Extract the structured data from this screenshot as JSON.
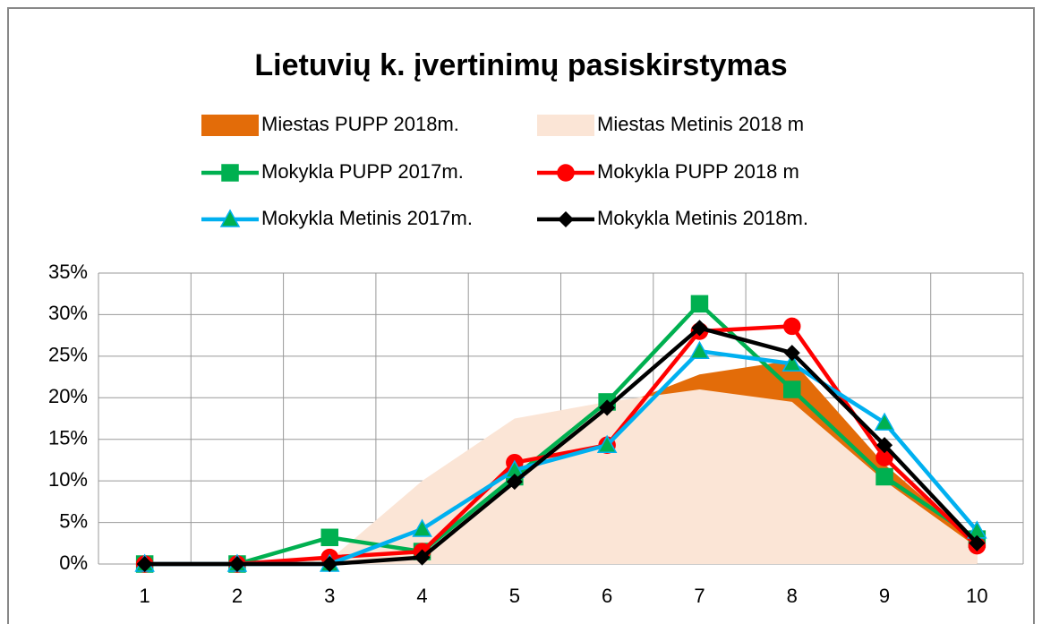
{
  "chart_data": {
    "type": "line",
    "title": "Lietuvių k. įvertinimų pasiskirstymas",
    "categories": [
      "1",
      "2",
      "3",
      "4",
      "5",
      "6",
      "7",
      "8",
      "9",
      "10"
    ],
    "series": [
      {
        "name": "Miestas PUPP 2018m.",
        "type": "area",
        "color": "#e36c09",
        "values": [
          0,
          0,
          1,
          1.5,
          11,
          18.5,
          22.8,
          24.5,
          12,
          2.5
        ]
      },
      {
        "name": "Miestas Metinis 2018 m",
        "type": "area",
        "color": "#fbe5d6",
        "values": [
          0,
          0,
          0.5,
          10,
          17.5,
          19.5,
          21,
          19.5,
          10,
          2
        ]
      },
      {
        "name": "Mokykla PUPP 2017m.",
        "type": "line",
        "color": "#00b050",
        "marker": "square",
        "marker_color": "#00b050",
        "values": [
          0,
          0,
          3.2,
          1.5,
          10.5,
          19.5,
          31.3,
          21,
          10.5,
          3
        ]
      },
      {
        "name": "Mokykla PUPP 2018 m",
        "type": "line",
        "color": "#ff0000",
        "marker": "circle",
        "marker_color": "#ff0000",
        "values": [
          0,
          0,
          0.8,
          1.5,
          12.2,
          14.3,
          28,
          28.6,
          12.8,
          2.2
        ]
      },
      {
        "name": "Mokykla Metinis 2017m.",
        "type": "line",
        "color": "#00b0f0",
        "marker": "triangle",
        "marker_color": "#00b050",
        "values": [
          0,
          0,
          0,
          4.2,
          11.3,
          14.3,
          25.6,
          24.1,
          17,
          4
        ]
      },
      {
        "name": "Mokykla Metinis 2018m.",
        "type": "line",
        "color": "#000000",
        "marker": "diamond",
        "marker_color": "#000000",
        "values": [
          0,
          0,
          0,
          0.8,
          9.9,
          18.8,
          28.4,
          25.4,
          14.3,
          2.5
        ]
      }
    ],
    "ylim": [
      0,
      35
    ],
    "yticks": [
      {
        "value": 0,
        "label": "0%"
      },
      {
        "value": 5,
        "label": "5%"
      },
      {
        "value": 10,
        "label": "10%"
      },
      {
        "value": 15,
        "label": "15%"
      },
      {
        "value": 20,
        "label": "20%"
      },
      {
        "value": 25,
        "label": "25%"
      },
      {
        "value": 30,
        "label": "30%"
      },
      {
        "value": 35,
        "label": "35%"
      }
    ],
    "grid": true,
    "legend": "top"
  }
}
